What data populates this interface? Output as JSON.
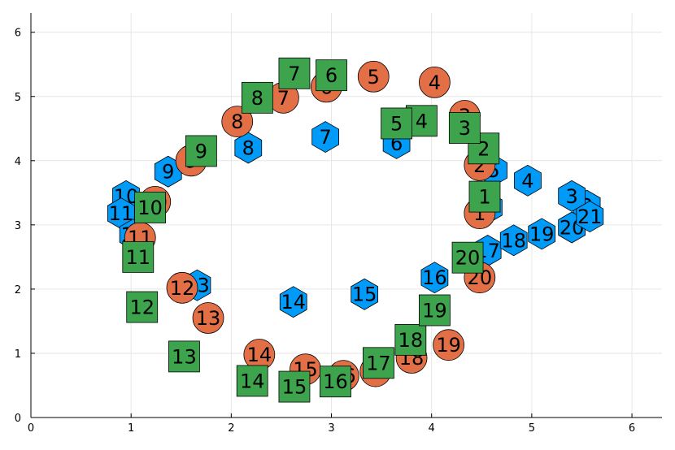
{
  "chart_data": {
    "type": "scatter",
    "title": "",
    "xlabel": "",
    "ylabel": "",
    "xlim": [
      0,
      6.3
    ],
    "ylim": [
      0,
      6.3
    ],
    "xticks": [
      0,
      1,
      2,
      3,
      4,
      5,
      6
    ],
    "yticks": [
      0,
      1,
      2,
      3,
      4,
      5,
      6
    ],
    "grid": true,
    "legend": "none",
    "series": [
      {
        "marker": "hexagon",
        "color": "#009af9",
        "points": [
          {
            "label": "1",
            "x": 4.57,
            "y": 3.27
          },
          {
            "label": "2",
            "x": 5.55,
            "y": 3.3
          },
          {
            "label": "3",
            "x": 5.4,
            "y": 3.45
          },
          {
            "label": "4",
            "x": 4.96,
            "y": 3.69
          },
          {
            "label": "5",
            "x": 4.62,
            "y": 3.85
          },
          {
            "label": "6",
            "x": 3.65,
            "y": 4.27
          },
          {
            "label": "7",
            "x": 2.94,
            "y": 4.37
          },
          {
            "label": "8",
            "x": 2.17,
            "y": 4.2
          },
          {
            "label": "9",
            "x": 1.37,
            "y": 3.83
          },
          {
            "label": "10",
            "x": 0.95,
            "y": 3.45
          },
          {
            "label": "11",
            "x": 0.9,
            "y": 3.18
          },
          {
            "label": "12",
            "x": 1.02,
            "y": 2.85
          },
          {
            "label": "13",
            "x": 1.66,
            "y": 2.06
          },
          {
            "label": "14",
            "x": 2.62,
            "y": 1.8
          },
          {
            "label": "15",
            "x": 3.33,
            "y": 1.92
          },
          {
            "label": "16",
            "x": 4.03,
            "y": 2.18
          },
          {
            "label": "17",
            "x": 4.56,
            "y": 2.6
          },
          {
            "label": "18",
            "x": 4.82,
            "y": 2.76
          },
          {
            "label": "19",
            "x": 5.1,
            "y": 2.86
          },
          {
            "label": "20",
            "x": 5.4,
            "y": 2.96
          },
          {
            "label": "21",
            "x": 5.58,
            "y": 3.13
          }
        ]
      },
      {
        "marker": "circle",
        "color": "#e26f46",
        "points": [
          {
            "label": "1",
            "x": 4.48,
            "y": 3.18
          },
          {
            "label": "2",
            "x": 4.48,
            "y": 3.93
          },
          {
            "label": "3",
            "x": 4.33,
            "y": 4.7
          },
          {
            "label": "4",
            "x": 4.03,
            "y": 5.22
          },
          {
            "label": "5",
            "x": 3.42,
            "y": 5.31
          },
          {
            "label": "6",
            "x": 2.95,
            "y": 5.15
          },
          {
            "label": "7",
            "x": 2.52,
            "y": 4.98
          },
          {
            "label": "8",
            "x": 2.06,
            "y": 4.61
          },
          {
            "label": "9",
            "x": 1.6,
            "y": 4.0
          },
          {
            "label": "10",
            "x": 1.24,
            "y": 3.36
          },
          {
            "label": "11",
            "x": 1.09,
            "y": 2.8
          },
          {
            "label": "12",
            "x": 1.51,
            "y": 2.02
          },
          {
            "label": "13",
            "x": 1.77,
            "y": 1.55
          },
          {
            "label": "14",
            "x": 2.28,
            "y": 0.98
          },
          {
            "label": "15",
            "x": 2.74,
            "y": 0.75
          },
          {
            "label": "16",
            "x": 3.12,
            "y": 0.65
          },
          {
            "label": "17",
            "x": 3.44,
            "y": 0.72
          },
          {
            "label": "18",
            "x": 3.8,
            "y": 0.93
          },
          {
            "label": "19",
            "x": 4.17,
            "y": 1.13
          },
          {
            "label": "20",
            "x": 4.48,
            "y": 2.18
          }
        ]
      },
      {
        "marker": "square",
        "color": "#3da44d",
        "points": [
          {
            "label": "1",
            "x": 4.53,
            "y": 3.44
          },
          {
            "label": "2",
            "x": 4.52,
            "y": 4.19
          },
          {
            "label": "3",
            "x": 4.33,
            "y": 4.51
          },
          {
            "label": "4",
            "x": 3.9,
            "y": 4.62
          },
          {
            "label": "5",
            "x": 3.65,
            "y": 4.58
          },
          {
            "label": "6",
            "x": 3.0,
            "y": 5.33
          },
          {
            "label": "7",
            "x": 2.63,
            "y": 5.36
          },
          {
            "label": "8",
            "x": 2.26,
            "y": 4.98
          },
          {
            "label": "9",
            "x": 1.7,
            "y": 4.15
          },
          {
            "label": "10",
            "x": 1.19,
            "y": 3.27
          },
          {
            "label": "11",
            "x": 1.07,
            "y": 2.5
          },
          {
            "label": "12",
            "x": 1.11,
            "y": 1.72
          },
          {
            "label": "13",
            "x": 1.53,
            "y": 0.95
          },
          {
            "label": "14",
            "x": 2.21,
            "y": 0.57
          },
          {
            "label": "15",
            "x": 2.63,
            "y": 0.48
          },
          {
            "label": "16",
            "x": 3.04,
            "y": 0.56
          },
          {
            "label": "17",
            "x": 3.47,
            "y": 0.85
          },
          {
            "label": "18",
            "x": 3.79,
            "y": 1.21
          },
          {
            "label": "19",
            "x": 4.03,
            "y": 1.67
          },
          {
            "label": "20",
            "x": 4.36,
            "y": 2.49
          }
        ]
      }
    ]
  }
}
